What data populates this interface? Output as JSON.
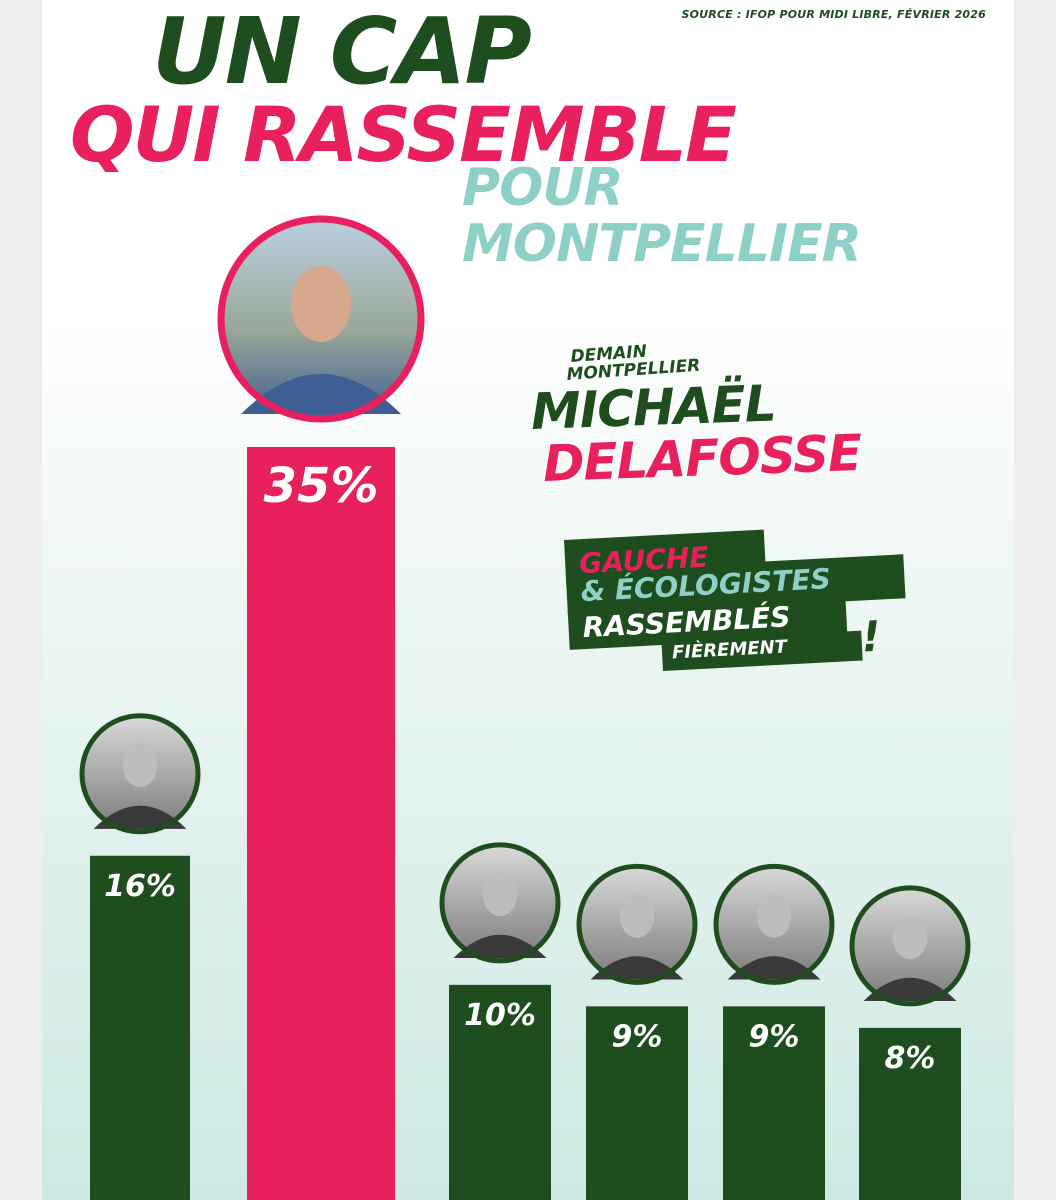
{
  "header": {
    "source": "SOURCE : IFOP POUR MIDI LIBRE, FÉVRIER 2026",
    "title_line1": "UN CAP",
    "title_line2": "QUI RASSEMBLE",
    "title_line3": "POUR",
    "title_line4": "MONTPELLIER"
  },
  "candidate_block": {
    "list_line1": "DEMAIN",
    "list_line2": "MONTPELLIER",
    "first_name": "MICHAËL",
    "last_name": "DELAFOSSE"
  },
  "badge": {
    "line1": "GAUCHE",
    "line2": "& ÉCOLOGISTES",
    "line3": "RASSEMBLÉS",
    "line4": "FIÈREMENT",
    "exclamation": "!"
  },
  "colors": {
    "dark_green": "#1e4d1e",
    "pink": "#e8215e",
    "mint": "#8fd0c6"
  },
  "chart_data": {
    "type": "bar",
    "title": "UN CAP QUI RASSEMBLE POUR MONTPELLIER",
    "ylim": [
      0,
      35
    ],
    "grid": false,
    "legend": "none",
    "values": [
      16,
      35,
      10,
      9,
      9,
      8
    ],
    "labels": [
      "16%",
      "35%",
      "10%",
      "9%",
      "9%",
      "8%"
    ],
    "highlight_index": 1,
    "bar_colors": [
      "#1e4d1e",
      "#e8215e",
      "#1e4d1e",
      "#1e4d1e",
      "#1e4d1e",
      "#1e4d1e"
    ],
    "portrait_icons": [
      "woman-portrait-icon",
      "michael-delafosse-portrait-icon",
      "man-portrait-icon",
      "man-portrait-icon",
      "man-portrait-icon",
      "woman-glasses-portrait-icon"
    ]
  }
}
